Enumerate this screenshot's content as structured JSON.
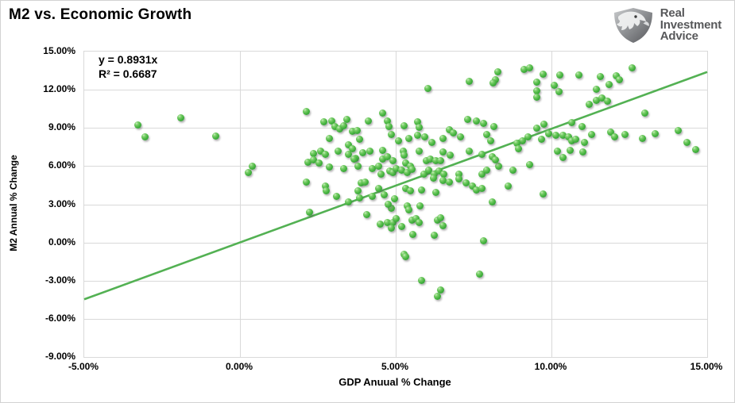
{
  "header": {
    "title": "M2 vs. Economic Growth"
  },
  "logo": {
    "icon": "eagle-shield-icon",
    "line1": "Real",
    "line2": "Investment",
    "line3": "Advice"
  },
  "chart_data": {
    "type": "scatter",
    "title": "M2 vs. Economic Growth",
    "xlabel": "GDP Anuual % Change",
    "ylabel": "M2 Annual % Change",
    "xlim": [
      -5,
      15
    ],
    "ylim": [
      -9,
      15
    ],
    "grid": true,
    "x_ticks": [
      -5,
      0,
      5,
      10,
      15
    ],
    "x_tick_labels": [
      "-5.00%",
      "0.00%",
      "5.00%",
      "10.00%",
      "15.00%"
    ],
    "y_ticks": [
      15,
      12,
      9,
      6,
      3,
      0,
      -3,
      -6,
      -9
    ],
    "y_tick_labels": [
      "15.00%",
      "12.00%",
      "9.00%",
      "6.00%",
      "3.00%",
      "0.00%",
      "-3.00%",
      "-6.00%",
      "-9.00%"
    ],
    "annotation": {
      "equation": "y = 0.8931x",
      "r_squared": "R² = 0.6687"
    },
    "trendline": {
      "slope": 0.8931,
      "intercept": 0,
      "color": "#53b153",
      "width": 2.6
    },
    "marker_color": "#4cb743",
    "gridline_color": "#d9d9d9",
    "points": [
      [
        -3.29,
        9.25
      ],
      [
        -3.06,
        8.3
      ],
      [
        -1.91,
        9.8
      ],
      [
        -0.77,
        8.35
      ],
      [
        0.4,
        6.0
      ],
      [
        0.28,
        5.5
      ],
      [
        2.14,
        10.3
      ],
      [
        6.04,
        12.1
      ],
      [
        7.37,
        12.65
      ],
      [
        8.29,
        13.4
      ],
      [
        8.21,
        12.8
      ],
      [
        8.13,
        12.55
      ],
      [
        2.69,
        9.5
      ],
      [
        2.95,
        9.55
      ],
      [
        3.04,
        9.1
      ],
      [
        3.19,
        8.9
      ],
      [
        3.34,
        9.15
      ],
      [
        3.44,
        9.65
      ],
      [
        3.6,
        8.75
      ],
      [
        3.75,
        8.8
      ],
      [
        4.13,
        9.55
      ],
      [
        4.59,
        10.15
      ],
      [
        4.72,
        9.55
      ],
      [
        4.79,
        9.1
      ],
      [
        5.27,
        9.15
      ],
      [
        5.71,
        9.5
      ],
      [
        5.76,
        9.05
      ],
      [
        6.71,
        8.85
      ],
      [
        6.84,
        8.6
      ],
      [
        7.09,
        8.3
      ],
      [
        7.32,
        9.65
      ],
      [
        7.58,
        9.55
      ],
      [
        7.83,
        9.35
      ],
      [
        7.91,
        8.5
      ],
      [
        8.06,
        8.0
      ],
      [
        2.88,
        8.15
      ],
      [
        3.16,
        7.15
      ],
      [
        3.49,
        7.65
      ],
      [
        3.62,
        7.35
      ],
      [
        3.83,
        8.1
      ],
      [
        4.59,
        7.25
      ],
      [
        4.85,
        8.5
      ],
      [
        5.1,
        8.0
      ],
      [
        5.43,
        8.15
      ],
      [
        5.71,
        8.4
      ],
      [
        5.94,
        8.3
      ],
      [
        6.17,
        7.85
      ],
      [
        6.53,
        8.15
      ],
      [
        9.13,
        13.6
      ],
      [
        9.29,
        13.7
      ],
      [
        9.72,
        13.2
      ],
      [
        9.52,
        12.6
      ],
      [
        9.52,
        11.9
      ],
      [
        9.52,
        11.4
      ],
      [
        10.26,
        13.15
      ],
      [
        10.1,
        12.35
      ],
      [
        10.23,
        11.85
      ],
      [
        10.89,
        13.15
      ],
      [
        11.56,
        13.05
      ],
      [
        11.86,
        12.4
      ],
      [
        12.07,
        13.1
      ],
      [
        12.17,
        12.8
      ],
      [
        12.58,
        13.7
      ],
      [
        11.45,
        12.05
      ],
      [
        11.43,
        11.15
      ],
      [
        11.61,
        11.35
      ],
      [
        11.22,
        10.85
      ],
      [
        11.81,
        11.1
      ],
      [
        13.01,
        10.2
      ],
      [
        9.77,
        9.3
      ],
      [
        9.52,
        9.0
      ],
      [
        10.66,
        9.4
      ],
      [
        10.97,
        9.1
      ],
      [
        8.16,
        9.1
      ],
      [
        9.24,
        8.3
      ],
      [
        9.06,
        8.0
      ],
      [
        8.88,
        7.8
      ],
      [
        9.69,
        8.1
      ],
      [
        9.9,
        8.55
      ],
      [
        10.15,
        8.4
      ],
      [
        10.36,
        8.4
      ],
      [
        10.56,
        8.3
      ],
      [
        10.64,
        8.0
      ],
      [
        10.79,
        8.1
      ],
      [
        11.05,
        7.85
      ],
      [
        11.28,
        8.5
      ],
      [
        11.91,
        8.65
      ],
      [
        12.04,
        8.3
      ],
      [
        12.37,
        8.5
      ],
      [
        12.93,
        8.15
      ],
      [
        13.34,
        8.55
      ],
      [
        14.08,
        8.8
      ],
      [
        14.36,
        7.85
      ],
      [
        14.62,
        7.3
      ],
      [
        10.2,
        7.2
      ],
      [
        11.0,
        7.1
      ],
      [
        8.93,
        7.35
      ],
      [
        10.38,
        6.65
      ],
      [
        10.59,
        7.25
      ],
      [
        9.31,
        6.1
      ],
      [
        8.75,
        5.65
      ],
      [
        8.3,
        6.0
      ],
      [
        8.6,
        4.45
      ],
      [
        9.74,
        3.8
      ],
      [
        2.35,
        7.0
      ],
      [
        2.6,
        7.15
      ],
      [
        2.73,
        6.9
      ],
      [
        3.49,
        6.9
      ],
      [
        3.7,
        6.6
      ],
      [
        3.95,
        7.05
      ],
      [
        4.16,
        7.15
      ],
      [
        4.57,
        6.55
      ],
      [
        4.72,
        6.75
      ],
      [
        4.92,
        6.4
      ],
      [
        2.17,
        6.3
      ],
      [
        2.37,
        6.5
      ],
      [
        2.53,
        6.25
      ],
      [
        2.88,
        5.9
      ],
      [
        3.32,
        5.8
      ],
      [
        3.65,
        6.55
      ],
      [
        3.8,
        6.0
      ],
      [
        4.26,
        5.8
      ],
      [
        4.46,
        6.0
      ],
      [
        4.54,
        5.35
      ],
      [
        4.8,
        5.6
      ],
      [
        4.92,
        5.5
      ],
      [
        5.0,
        5.8
      ],
      [
        2.12,
        4.75
      ],
      [
        2.73,
        4.45
      ],
      [
        2.78,
        4.05
      ],
      [
        3.11,
        3.6
      ],
      [
        3.49,
        3.2
      ],
      [
        3.78,
        4.05
      ],
      [
        3.9,
        4.7
      ],
      [
        4.01,
        4.75
      ],
      [
        3.83,
        3.5
      ],
      [
        4.26,
        3.6
      ],
      [
        4.46,
        4.25
      ],
      [
        4.64,
        3.75
      ],
      [
        2.24,
        2.35
      ],
      [
        4.08,
        2.2
      ],
      [
        4.85,
        2.7
      ],
      [
        4.77,
        3.0
      ],
      [
        4.97,
        3.45
      ],
      [
        4.51,
        1.45
      ],
      [
        4.72,
        1.55
      ],
      [
        4.9,
        1.55
      ],
      [
        5.0,
        1.85
      ],
      [
        4.85,
        1.1
      ],
      [
        5.23,
        7.15
      ],
      [
        5.28,
        6.85
      ],
      [
        5.74,
        7.15
      ],
      [
        6.51,
        7.1
      ],
      [
        6.76,
        6.85
      ],
      [
        7.35,
        7.15
      ],
      [
        7.78,
        6.9
      ],
      [
        8.09,
        6.75
      ],
      [
        5.99,
        6.4
      ],
      [
        6.12,
        6.55
      ],
      [
        6.3,
        6.4
      ],
      [
        6.45,
        6.4
      ],
      [
        5.33,
        6.25
      ],
      [
        5.48,
        6.0
      ],
      [
        8.21,
        6.5
      ],
      [
        5.18,
        5.65
      ],
      [
        5.36,
        5.5
      ],
      [
        5.53,
        5.75
      ],
      [
        5.91,
        5.35
      ],
      [
        6.07,
        5.65
      ],
      [
        6.24,
        5.35
      ],
      [
        6.2,
        5.05
      ],
      [
        6.38,
        5.6
      ],
      [
        6.55,
        5.35
      ],
      [
        6.51,
        4.85
      ],
      [
        6.71,
        4.75
      ],
      [
        7.02,
        5.35
      ],
      [
        7.02,
        5.0
      ],
      [
        7.27,
        4.7
      ],
      [
        7.45,
        4.45
      ],
      [
        7.6,
        4.1
      ],
      [
        7.78,
        4.25
      ],
      [
        7.78,
        5.35
      ],
      [
        7.91,
        5.65
      ],
      [
        5.31,
        4.25
      ],
      [
        5.48,
        4.05
      ],
      [
        5.82,
        4.1
      ],
      [
        6.3,
        3.95
      ],
      [
        8.09,
        3.2
      ],
      [
        5.36,
        2.85
      ],
      [
        5.43,
        2.55
      ],
      [
        5.79,
        2.85
      ],
      [
        5.18,
        1.25
      ],
      [
        5.53,
        1.75
      ],
      [
        5.66,
        1.85
      ],
      [
        5.74,
        1.55
      ],
      [
        6.33,
        1.75
      ],
      [
        6.45,
        1.95
      ],
      [
        6.51,
        1.3
      ],
      [
        6.24,
        0.6
      ],
      [
        5.56,
        0.65
      ],
      [
        7.83,
        0.15
      ],
      [
        5.28,
        -0.9
      ],
      [
        5.31,
        -1.1
      ],
      [
        5.82,
        -3.0
      ],
      [
        6.43,
        -3.75
      ],
      [
        6.33,
        -4.25
      ],
      [
        7.7,
        -2.5
      ]
    ]
  }
}
